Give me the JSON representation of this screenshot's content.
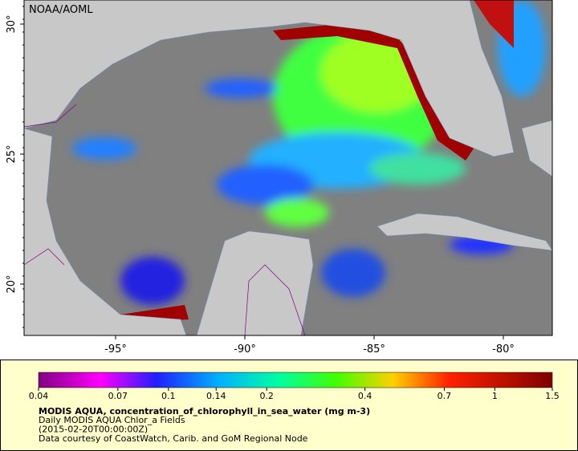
{
  "map": {
    "attribution": "NOAA/AOML",
    "lat_ticks": [
      {
        "value": 30,
        "label": "30°"
      },
      {
        "value": 25,
        "label": "25°"
      },
      {
        "value": 20,
        "label": "20°"
      }
    ],
    "lon_ticks": [
      {
        "value": -95,
        "label": "-95°"
      },
      {
        "value": -90,
        "label": "-90°"
      },
      {
        "value": -85,
        "label": "-85°"
      },
      {
        "value": -80,
        "label": "-80°"
      }
    ]
  },
  "colorbar": {
    "scale": "log",
    "range": [
      0.04,
      1.5
    ],
    "ticks": [
      0.04,
      0.07,
      0.1,
      0.14,
      0.2,
      0.4,
      0.7,
      1,
      1.5
    ]
  },
  "caption": {
    "title": "MODIS AQUA, concentration_of_chlorophyll_in_sea_water (mg m-3)",
    "lines": [
      "Daily MODIS AQUA Chlor_a Fields",
      "(2015-02-20T00:00:00Z)",
      "Data courtesy of CoastWatch, Carib. and GoM Regional Node"
    ]
  }
}
